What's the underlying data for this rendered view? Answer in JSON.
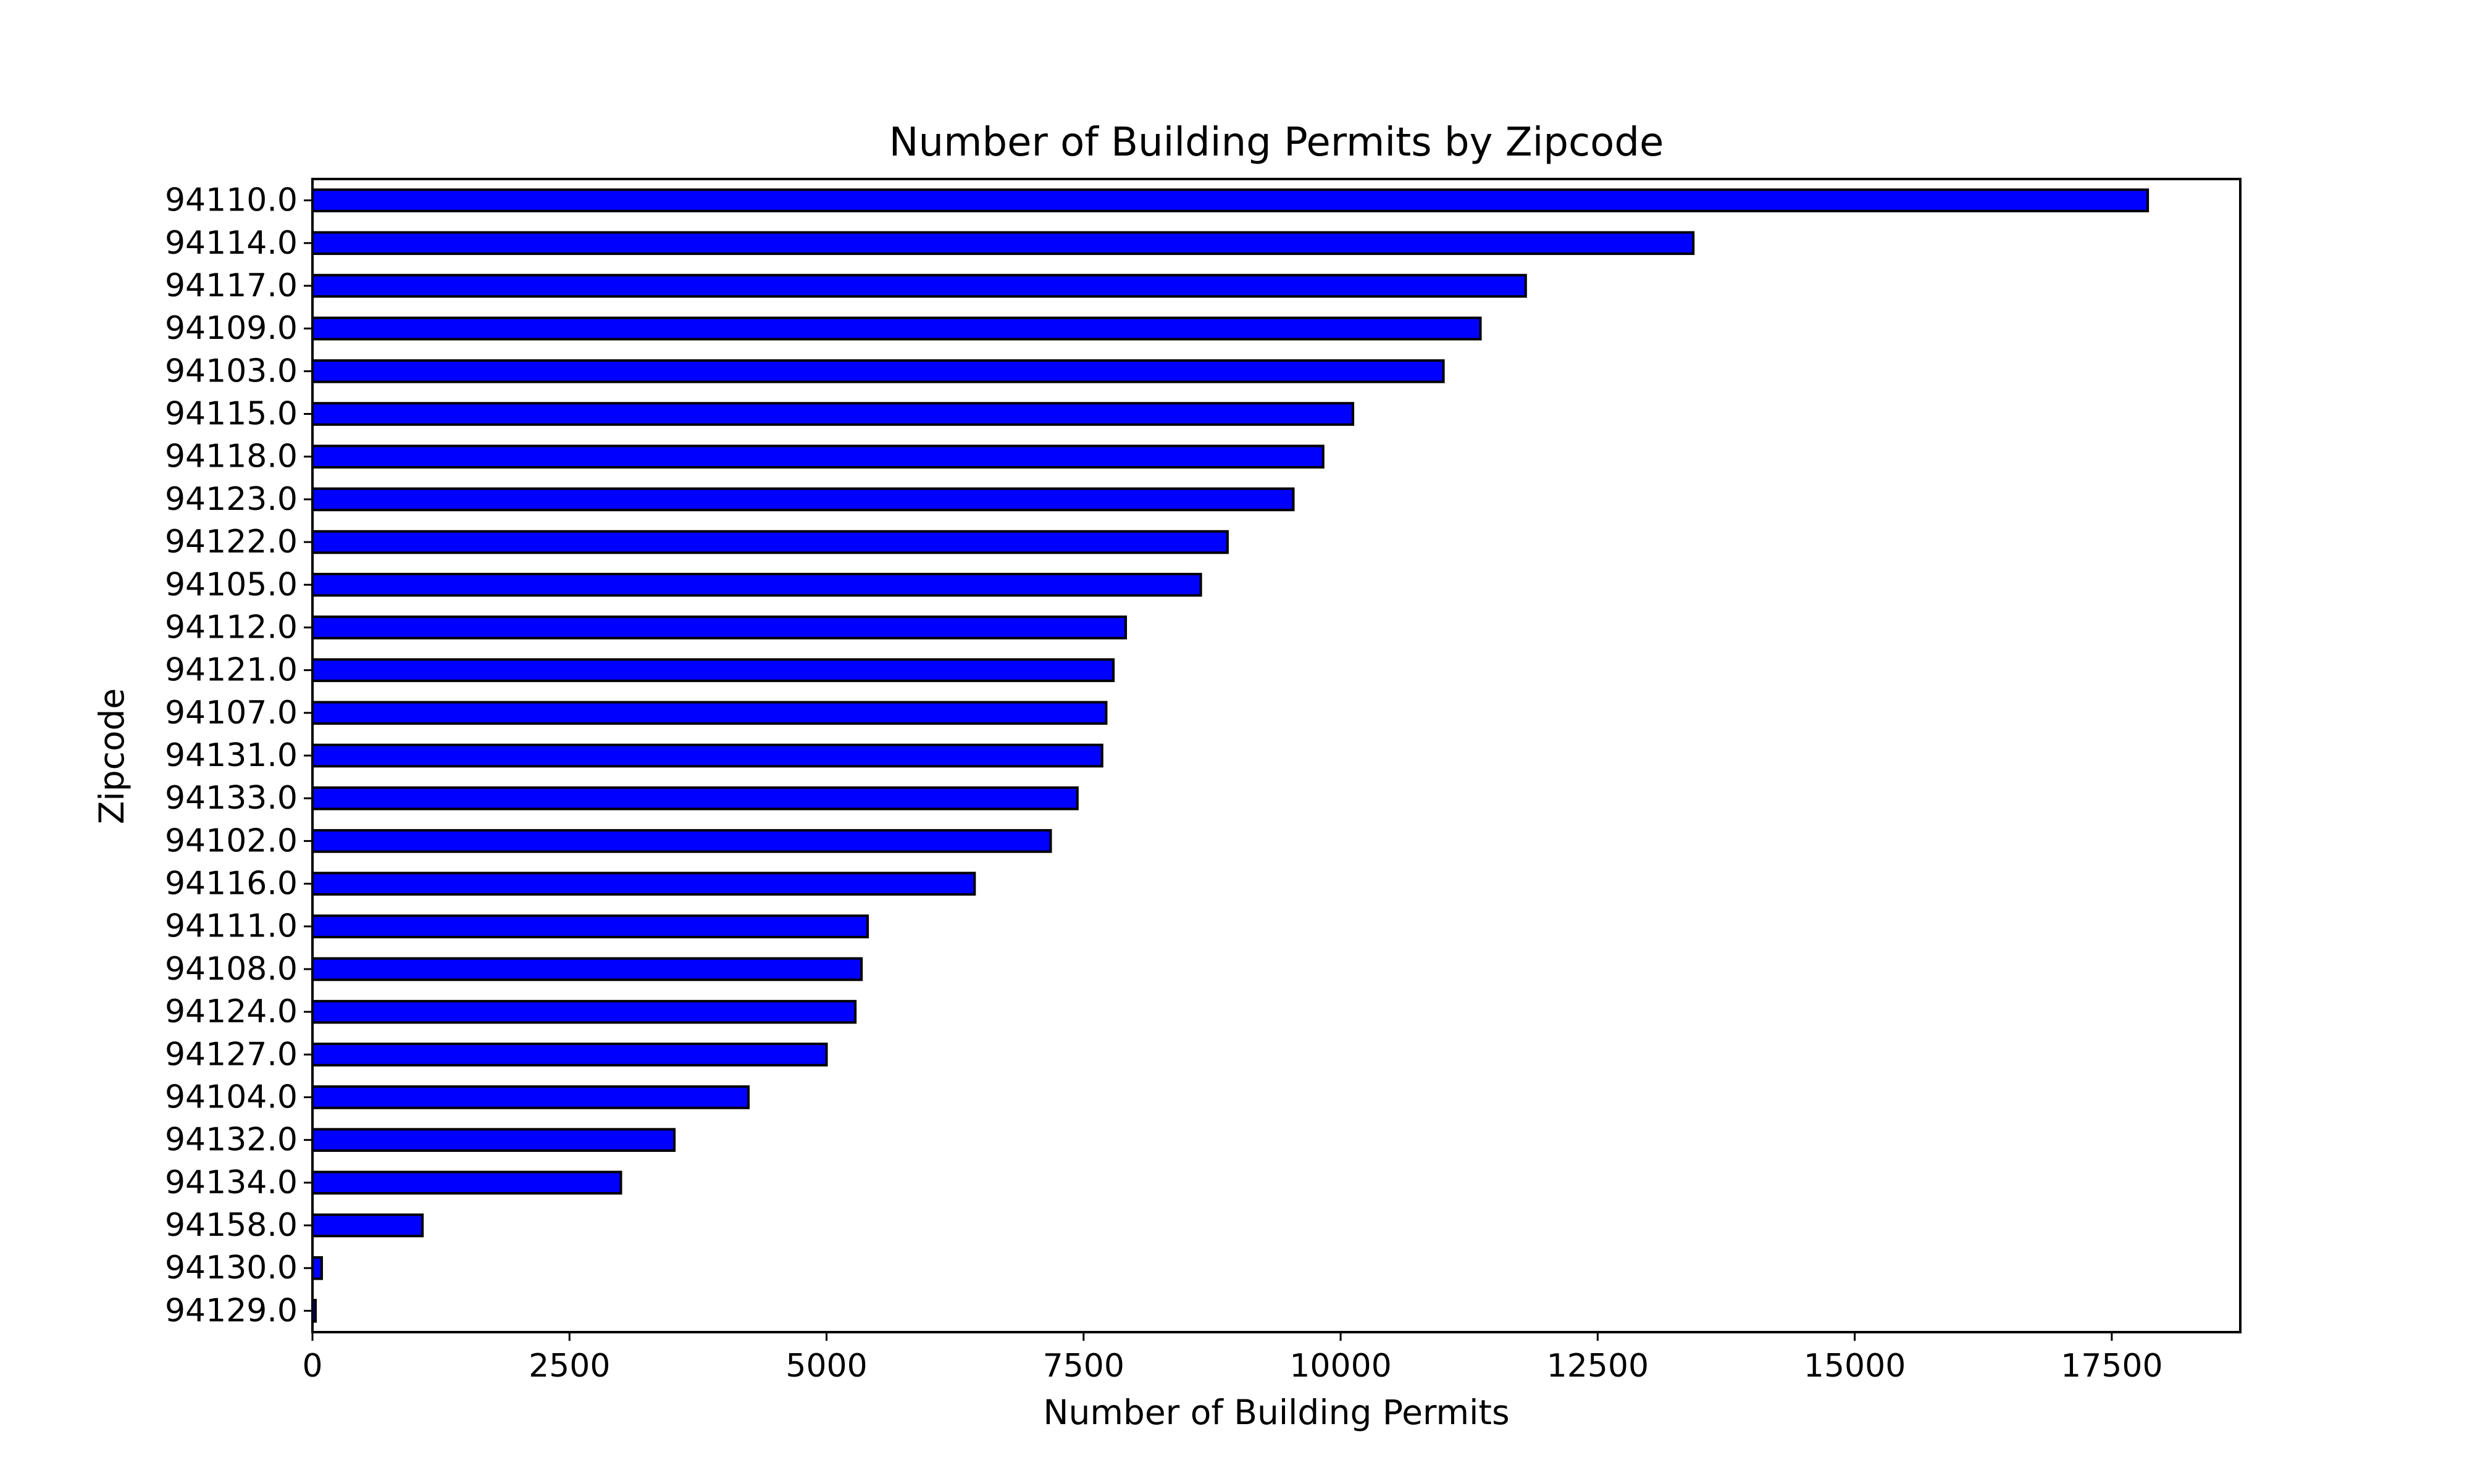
{
  "chart_data": {
    "type": "bar",
    "orientation": "horizontal",
    "title": "Number of Building Permits by Zipcode",
    "xlabel": "Number of Building Permits",
    "ylabel": "Zipcode",
    "categories": [
      "94110.0",
      "94114.0",
      "94117.0",
      "94109.0",
      "94103.0",
      "94115.0",
      "94118.0",
      "94123.0",
      "94122.0",
      "94105.0",
      "94112.0",
      "94121.0",
      "94107.0",
      "94131.0",
      "94133.0",
      "94102.0",
      "94116.0",
      "94111.0",
      "94108.0",
      "94124.0",
      "94127.0",
      "94104.0",
      "94132.0",
      "94134.0",
      "94158.0",
      "94130.0",
      "94129.0"
    ],
    "values": [
      17850,
      13430,
      11800,
      11360,
      11000,
      10120,
      9830,
      9540,
      8900,
      8640,
      7910,
      7790,
      7720,
      7680,
      7440,
      7180,
      6440,
      5400,
      5340,
      5280,
      5000,
      4240,
      3520,
      3000,
      1070,
      90,
      30
    ],
    "xlim": [
      0,
      18750
    ],
    "xticks": [
      0,
      2500,
      5000,
      7500,
      10000,
      12500,
      15000,
      17500
    ],
    "xtick_labels": [
      "0",
      "2500",
      "5000",
      "7500",
      "10000",
      "12500",
      "15000",
      "17500"
    ],
    "bar_color": "#0000ff",
    "bar_edge_color": "#000000",
    "grid": false,
    "legend": "none"
  }
}
